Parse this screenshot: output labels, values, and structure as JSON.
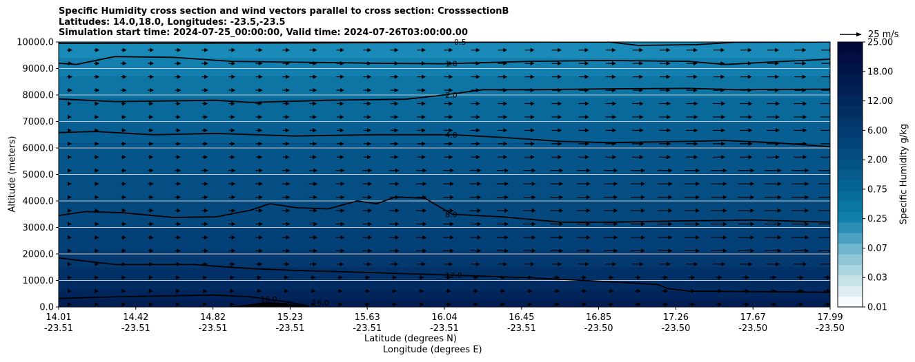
{
  "title": {
    "line1": "Specific Humidity cross section and wind vectors parallel to cross section: CrosssectionB",
    "line2": "Latitudes: 14.0,18.0, Longitudes: -23.5,-23.5",
    "line3": "Simulation start time: 2024-07-25_00:00:00, Valid time: 2024-07-26T03:00:00.00"
  },
  "chart_data": {
    "type": "heatmap",
    "xlabel": "Latitude (degrees N)",
    "xlabel2": "Longitude (degrees E)",
    "ylabel": "Altitude (meters)",
    "ylim": [
      0,
      10000
    ],
    "grid": "horizontal",
    "x_ticks": [
      {
        "lat": "14.01",
        "lon": "-23.51"
      },
      {
        "lat": "14.42",
        "lon": "-23.51"
      },
      {
        "lat": "14.82",
        "lon": "-23.51"
      },
      {
        "lat": "15.23",
        "lon": "-23.51"
      },
      {
        "lat": "15.63",
        "lon": "-23.51"
      },
      {
        "lat": "16.04",
        "lon": "-23.51"
      },
      {
        "lat": "16.45",
        "lon": "-23.51"
      },
      {
        "lat": "16.85",
        "lon": "-23.50"
      },
      {
        "lat": "17.26",
        "lon": "-23.50"
      },
      {
        "lat": "17.67",
        "lon": "-23.50"
      },
      {
        "lat": "17.99",
        "lon": "-23.50"
      }
    ],
    "y_ticks": [
      "0.0",
      "1000.0",
      "2000.0",
      "3000.0",
      "4000.0",
      "5000.0",
      "6000.0",
      "7000.0",
      "8000.0",
      "9000.0",
      "10000.0"
    ],
    "colorbar": {
      "label": "Specific Humidity g/kg",
      "ticks": [
        "0.01",
        "0.03",
        "0.07",
        "0.25",
        "0.75",
        "2.00",
        "6.00",
        "12.00",
        "18.00",
        "25.00"
      ],
      "colors": [
        "#f7fbff",
        "#dfeef2",
        "#c6e3ea",
        "#acd6e2",
        "#8fc7d9",
        "#6fb5cd",
        "#4ea2c1",
        "#2b8fb5",
        "#0f7fab",
        "#0a76a4",
        "#086c9d",
        "#066395",
        "#055b8e",
        "#045387",
        "#044c80",
        "#034479",
        "#033d72",
        "#02366b",
        "#022f63",
        "#01285c",
        "#012155",
        "#011b4e",
        "#011548",
        "#010f42",
        "#00093b"
      ]
    },
    "contours": [
      {
        "label": "0.5",
        "points": [
          [
            14.01,
            9950
          ],
          [
            15.2,
            9960
          ],
          [
            16.0,
            9990
          ],
          [
            16.85,
            10000
          ],
          [
            17.0,
            9870
          ],
          [
            17.3,
            9900
          ],
          [
            17.5,
            9990
          ],
          [
            17.99,
            10000
          ]
        ]
      },
      {
        "label": "1.0",
        "points": [
          [
            14.01,
            9200
          ],
          [
            14.1,
            9150
          ],
          [
            14.3,
            9450
          ],
          [
            14.6,
            9420
          ],
          [
            14.9,
            9270
          ],
          [
            15.3,
            9230
          ],
          [
            15.63,
            9200
          ],
          [
            16.0,
            9180
          ],
          [
            16.45,
            9270
          ],
          [
            16.85,
            9300
          ],
          [
            17.26,
            9270
          ],
          [
            17.45,
            9150
          ],
          [
            17.7,
            9250
          ],
          [
            17.99,
            9350
          ]
        ]
      },
      {
        "label": "2.0",
        "points": [
          [
            14.01,
            7850
          ],
          [
            14.3,
            7750
          ],
          [
            14.82,
            7800
          ],
          [
            15.0,
            7720
          ],
          [
            15.4,
            7800
          ],
          [
            15.8,
            7840
          ],
          [
            16.0,
            8000
          ],
          [
            16.2,
            8200
          ],
          [
            16.45,
            8200
          ],
          [
            16.85,
            8230
          ],
          [
            17.26,
            8250
          ],
          [
            17.5,
            8200
          ],
          [
            17.99,
            8220
          ]
        ]
      },
      {
        "label": "4.0",
        "points": [
          [
            14.01,
            6580
          ],
          [
            14.2,
            6620
          ],
          [
            14.5,
            6500
          ],
          [
            14.82,
            6550
          ],
          [
            15.23,
            6450
          ],
          [
            15.63,
            6500
          ],
          [
            16.04,
            6500
          ],
          [
            16.3,
            6400
          ],
          [
            16.6,
            6250
          ],
          [
            16.85,
            6200
          ],
          [
            17.26,
            6250
          ],
          [
            17.45,
            6280
          ],
          [
            17.7,
            6200
          ],
          [
            17.99,
            6050
          ]
        ]
      },
      {
        "label": "8.0",
        "points": [
          [
            14.01,
            3450
          ],
          [
            14.15,
            3600
          ],
          [
            14.35,
            3550
          ],
          [
            14.6,
            3380
          ],
          [
            14.82,
            3400
          ],
          [
            15.0,
            3650
          ],
          [
            15.1,
            3900
          ],
          [
            15.23,
            3750
          ],
          [
            15.4,
            3700
          ],
          [
            15.55,
            4000
          ],
          [
            15.65,
            3900
          ],
          [
            15.75,
            4150
          ],
          [
            15.9,
            4100
          ],
          [
            16.04,
            3500
          ],
          [
            16.3,
            3400
          ],
          [
            16.6,
            3200
          ],
          [
            16.85,
            3200
          ],
          [
            17.26,
            3250
          ],
          [
            17.6,
            3280
          ],
          [
            17.99,
            3200
          ]
        ]
      },
      {
        "label": "12.0",
        "points": [
          [
            14.01,
            1850
          ],
          [
            14.3,
            1600
          ],
          [
            14.7,
            1600
          ],
          [
            15.0,
            1450
          ],
          [
            15.23,
            1380
          ],
          [
            15.6,
            1300
          ],
          [
            16.04,
            1200
          ],
          [
            16.45,
            1100
          ],
          [
            16.85,
            950
          ],
          [
            17.1,
            850
          ],
          [
            17.15,
            700
          ],
          [
            17.26,
            600
          ],
          [
            17.6,
            580
          ],
          [
            17.99,
            550
          ]
        ]
      },
      {
        "label": "16.0",
        "points": [
          [
            14.01,
            320
          ],
          [
            14.3,
            380
          ],
          [
            14.6,
            420
          ],
          [
            14.82,
            450
          ],
          [
            15.0,
            380
          ],
          [
            15.2,
            180
          ],
          [
            15.3,
            40
          ]
        ]
      },
      {
        "label": "16.0",
        "points": [
          [
            14.9,
            0
          ],
          [
            15.0,
            80
          ],
          [
            15.08,
            160
          ],
          [
            15.18,
            120
          ],
          [
            15.3,
            0
          ]
        ]
      }
    ],
    "contour_label_values": [
      "0.5",
      "1.0",
      "2.0",
      "4.0",
      "8.0",
      "12.0",
      "16.0",
      "16.0"
    ],
    "quiver_key": {
      "value": 25,
      "label": "25 m/s"
    }
  }
}
